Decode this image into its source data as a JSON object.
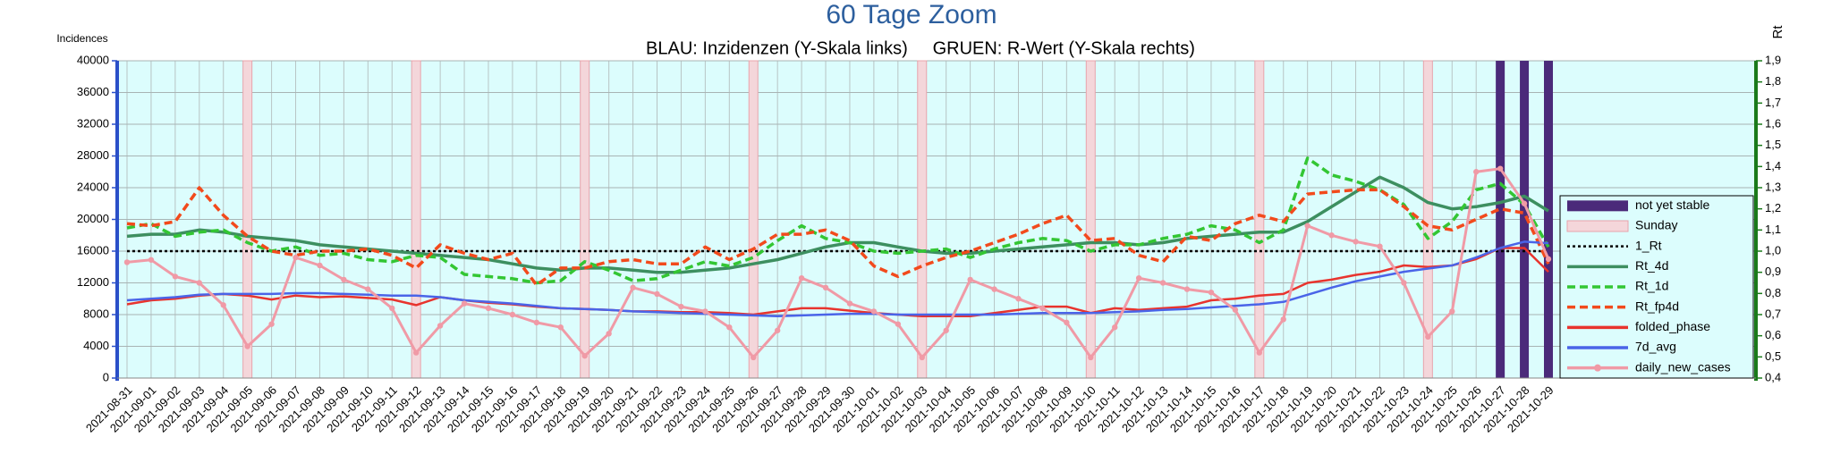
{
  "chart_data": {
    "type": "line",
    "title": "60 Tage Zoom",
    "subtitle": "BLAU: Inzidenzen (Y-Skala links)     GRUEN: R-Wert (Y-Skala rechts)",
    "ylabel": "Incidences",
    "y2label": "Rt",
    "x": [
      "2021-08-31",
      "2021-09-01",
      "2021-09-02",
      "2021-09-03",
      "2021-09-04",
      "2021-09-05",
      "2021-09-06",
      "2021-09-07",
      "2021-09-08",
      "2021-09-09",
      "2021-09-10",
      "2021-09-11",
      "2021-09-12",
      "2021-09-13",
      "2021-09-14",
      "2021-09-15",
      "2021-09-16",
      "2021-09-17",
      "2021-09-18",
      "2021-09-19",
      "2021-09-20",
      "2021-09-21",
      "2021-09-22",
      "2021-09-23",
      "2021-09-24",
      "2021-09-25",
      "2021-09-26",
      "2021-09-27",
      "2021-09-28",
      "2021-09-29",
      "2021-09-30",
      "2021-10-01",
      "2021-10-02",
      "2021-10-03",
      "2021-10-04",
      "2021-10-05",
      "2021-10-06",
      "2021-10-07",
      "2021-10-08",
      "2021-10-09",
      "2021-10-10",
      "2021-10-11",
      "2021-10-12",
      "2021-10-13",
      "2021-10-14",
      "2021-10-15",
      "2021-10-16",
      "2021-10-17",
      "2021-10-18",
      "2021-10-19",
      "2021-10-20",
      "2021-10-21",
      "2021-10-22",
      "2021-10-23",
      "2021-10-24",
      "2021-10-25",
      "2021-10-26",
      "2021-10-27",
      "2021-10-28",
      "2021-10-29"
    ],
    "ylim": [
      0,
      40000
    ],
    "yticks": [
      0,
      4000,
      8000,
      12000,
      16000,
      20000,
      24000,
      28000,
      32000,
      36000,
      40000
    ],
    "y2lim": [
      0.4,
      1.9
    ],
    "y2ticks": [
      {
        "value": 0.4,
        "label": "0,4"
      },
      {
        "value": 0.5,
        "label": "0,5"
      },
      {
        "value": 0.6,
        "label": "0,6"
      },
      {
        "value": 0.7,
        "label": "0,7"
      },
      {
        "value": 0.8,
        "label": "0,8"
      },
      {
        "value": 0.9,
        "label": "0,9"
      },
      {
        "value": 1.0,
        "label": "1,0"
      },
      {
        "value": 1.1,
        "label": "1,1"
      },
      {
        "value": 1.2,
        "label": "1,2"
      },
      {
        "value": 1.3,
        "label": "1,3"
      },
      {
        "value": 1.4,
        "label": "1,4"
      },
      {
        "value": 1.5,
        "label": "1,5"
      },
      {
        "value": 1.6,
        "label": "1,6"
      },
      {
        "value": 1.7,
        "label": "1,7"
      },
      {
        "value": 1.8,
        "label": "1,8"
      },
      {
        "value": 1.9,
        "label": "1,9"
      }
    ],
    "grid": true,
    "legend": "lower right",
    "series": [
      {
        "name": "not yet stable",
        "style": "bar",
        "axis": "y",
        "color": "#4b2a7a",
        "values": [
          null,
          null,
          null,
          null,
          null,
          null,
          null,
          null,
          null,
          null,
          null,
          null,
          null,
          null,
          null,
          null,
          null,
          null,
          null,
          null,
          null,
          null,
          null,
          null,
          null,
          null,
          null,
          null,
          null,
          null,
          null,
          null,
          null,
          null,
          null,
          null,
          null,
          null,
          null,
          null,
          null,
          null,
          null,
          null,
          null,
          null,
          null,
          null,
          null,
          null,
          null,
          null,
          null,
          null,
          null,
          null,
          null,
          40000,
          40000,
          40000
        ]
      },
      {
        "name": "Sunday",
        "style": "bar",
        "axis": "y",
        "color": "#f4d6da",
        "values": [
          null,
          null,
          null,
          null,
          null,
          40000,
          null,
          null,
          null,
          null,
          null,
          null,
          40000,
          null,
          null,
          null,
          null,
          null,
          null,
          40000,
          null,
          null,
          null,
          null,
          null,
          null,
          40000,
          null,
          null,
          null,
          null,
          null,
          null,
          40000,
          null,
          null,
          null,
          null,
          null,
          null,
          40000,
          null,
          null,
          null,
          null,
          null,
          null,
          40000,
          null,
          null,
          null,
          null,
          null,
          null,
          40000,
          null,
          null,
          null,
          null,
          null
        ]
      },
      {
        "name": "1_Rt",
        "style": "dotted",
        "axis": "y2",
        "color": "#000000",
        "values": [
          1,
          1,
          1,
          1,
          1,
          1,
          1,
          1,
          1,
          1,
          1,
          1,
          1,
          1,
          1,
          1,
          1,
          1,
          1,
          1,
          1,
          1,
          1,
          1,
          1,
          1,
          1,
          1,
          1,
          1,
          1,
          1,
          1,
          1,
          1,
          1,
          1,
          1,
          1,
          1,
          1,
          1,
          1,
          1,
          1,
          1,
          1,
          1,
          1,
          1,
          1,
          1,
          1,
          1,
          1,
          1,
          1,
          1,
          1,
          1
        ]
      },
      {
        "name": "Rt_4d",
        "style": "solid",
        "axis": "y2",
        "color": "#3d8f60",
        "values": [
          1.07,
          1.08,
          1.08,
          1.1,
          1.09,
          1.07,
          1.06,
          1.05,
          1.03,
          1.02,
          1.01,
          1.0,
          0.99,
          0.98,
          0.97,
          0.96,
          0.94,
          0.92,
          0.91,
          0.92,
          0.92,
          0.91,
          0.9,
          0.9,
          0.91,
          0.92,
          0.94,
          0.96,
          0.99,
          1.02,
          1.04,
          1.04,
          1.02,
          1.0,
          0.99,
          0.99,
          1.0,
          1.01,
          1.02,
          1.03,
          1.04,
          1.04,
          1.03,
          1.04,
          1.06,
          1.07,
          1.08,
          1.09,
          1.09,
          1.14,
          1.21,
          1.28,
          1.35,
          1.3,
          1.23,
          1.2,
          1.21,
          1.23,
          1.26,
          1.19
        ]
      },
      {
        "name": "Rt_1d",
        "style": "dashed",
        "axis": "y2",
        "color": "#33c633",
        "values": [
          1.11,
          1.13,
          1.07,
          1.09,
          1.1,
          1.04,
          1.0,
          1.02,
          0.98,
          0.99,
          0.96,
          0.95,
          0.98,
          0.97,
          0.89,
          0.88,
          0.87,
          0.85,
          0.86,
          0.95,
          0.91,
          0.86,
          0.87,
          0.91,
          0.95,
          0.93,
          0.97,
          1.05,
          1.12,
          1.06,
          1.04,
          1.0,
          0.99,
          1.0,
          1.01,
          0.97,
          1.01,
          1.04,
          1.06,
          1.05,
          1.0,
          1.03,
          1.03,
          1.06,
          1.08,
          1.12,
          1.1,
          1.04,
          1.1,
          1.44,
          1.36,
          1.33,
          1.29,
          1.22,
          1.06,
          1.14,
          1.29,
          1.32,
          1.22,
          1.02
        ]
      },
      {
        "name": "Rt_fp4d",
        "style": "dashed",
        "axis": "y2",
        "color": "#f24a1c",
        "values": [
          1.13,
          1.12,
          1.14,
          1.3,
          1.17,
          1.07,
          1.0,
          0.98,
          1.0,
          1.0,
          1.01,
          0.98,
          0.92,
          1.03,
          0.99,
          0.96,
          0.99,
          0.84,
          0.92,
          0.92,
          0.95,
          0.96,
          0.94,
          0.94,
          1.02,
          0.96,
          1.01,
          1.08,
          1.08,
          1.1,
          1.05,
          0.93,
          0.88,
          0.93,
          0.97,
          1.0,
          1.04,
          1.08,
          1.13,
          1.17,
          1.05,
          1.06,
          0.98,
          0.95,
          1.07,
          1.05,
          1.13,
          1.17,
          1.14,
          1.27,
          1.28,
          1.29,
          1.29,
          1.21,
          1.12,
          1.1,
          1.15,
          1.2,
          1.18,
          0.94
        ]
      },
      {
        "name": "folded_phase",
        "style": "solid",
        "axis": "y",
        "color": "#e8342e",
        "values": [
          9300,
          9800,
          10000,
          10400,
          10600,
          10400,
          9900,
          10400,
          10200,
          10300,
          10100,
          9900,
          9200,
          10200,
          9800,
          9500,
          9300,
          9000,
          8800,
          8700,
          8600,
          8400,
          8400,
          8300,
          8300,
          8200,
          8000,
          8400,
          8800,
          8800,
          8500,
          8200,
          8000,
          7800,
          7800,
          7800,
          8200,
          8600,
          9000,
          9000,
          8200,
          8800,
          8600,
          8800,
          9000,
          9800,
          10000,
          10400,
          10600,
          12000,
          12400,
          13000,
          13400,
          14200,
          14000,
          14200,
          15000,
          16400,
          16400,
          13400
        ]
      },
      {
        "name": "7d_avg",
        "style": "solid",
        "axis": "y",
        "color": "#4a64e8",
        "values": [
          9800,
          10000,
          10200,
          10500,
          10600,
          10600,
          10600,
          10700,
          10700,
          10600,
          10500,
          10400,
          10400,
          10200,
          9800,
          9600,
          9400,
          9100,
          8800,
          8700,
          8600,
          8400,
          8300,
          8200,
          8100,
          8000,
          7900,
          7800,
          7900,
          8000,
          8100,
          8100,
          8000,
          8000,
          8000,
          8000,
          8000,
          8100,
          8200,
          8200,
          8200,
          8300,
          8400,
          8600,
          8700,
          8900,
          9100,
          9300,
          9600,
          10500,
          11400,
          12200,
          12800,
          13400,
          13800,
          14200,
          15200,
          16400,
          17200,
          17000
        ]
      },
      {
        "name": "daily_new_cases",
        "style": "marker",
        "axis": "y",
        "color": "#f09aa6",
        "values": [
          14600,
          14900,
          12800,
          12000,
          9200,
          4000,
          6800,
          15200,
          14200,
          12400,
          11200,
          8800,
          3200,
          6600,
          9400,
          8800,
          8000,
          7000,
          6400,
          2800,
          5600,
          11400,
          10600,
          9000,
          8400,
          6400,
          2600,
          6000,
          12600,
          11400,
          9400,
          8400,
          6800,
          2600,
          6000,
          12400,
          11200,
          10000,
          8800,
          7000,
          2600,
          6400,
          12600,
          12000,
          11200,
          10800,
          8600,
          3200,
          7400,
          19200,
          18000,
          17200,
          16600,
          12000,
          5200,
          8400,
          26000,
          26400,
          22000,
          15000
        ]
      }
    ]
  }
}
